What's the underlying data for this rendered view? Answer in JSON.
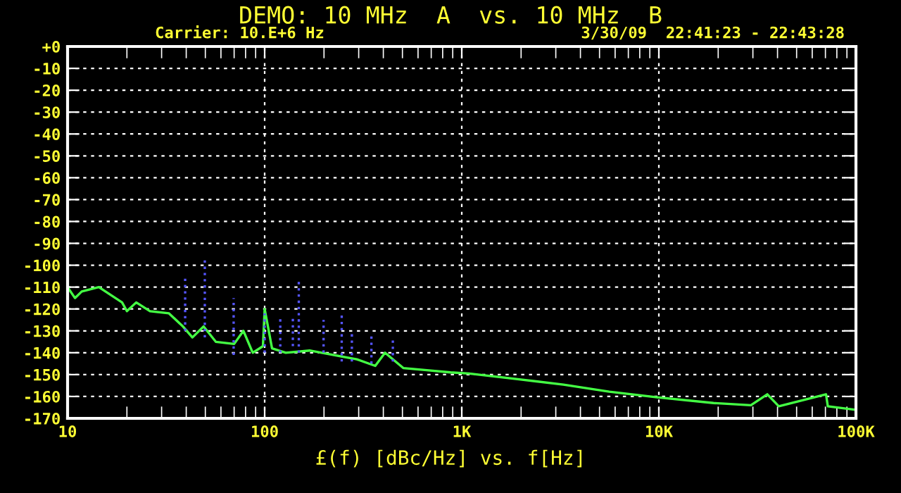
{
  "chart_data": {
    "type": "line",
    "title": "DEMO: 10 MHz  A  vs. 10 MHz  B",
    "subtitle": "Carrier: 10.E+6 Hz",
    "annotations": [
      "3/30/09  22:41:23 - 22:43:28"
    ],
    "xlabel": "£(f) [dBc/Hz] vs. f[Hz]",
    "log": "x",
    "grid": true,
    "xlim": [
      10,
      100000
    ],
    "ylim": [
      -170,
      0
    ],
    "xticks": [
      {
        "value": 10,
        "label": "10"
      },
      {
        "value": 20,
        "label": null
      },
      {
        "value": 30,
        "label": null
      },
      {
        "value": 40,
        "label": null
      },
      {
        "value": 50,
        "label": null
      },
      {
        "value": 60,
        "label": null
      },
      {
        "value": 70,
        "label": null
      },
      {
        "value": 80,
        "label": null
      },
      {
        "value": 90,
        "label": null
      },
      {
        "value": 100,
        "label": "100"
      },
      {
        "value": 200,
        "label": null
      },
      {
        "value": 300,
        "label": null
      },
      {
        "value": 400,
        "label": null
      },
      {
        "value": 500,
        "label": null
      },
      {
        "value": 600,
        "label": null
      },
      {
        "value": 700,
        "label": null
      },
      {
        "value": 800,
        "label": null
      },
      {
        "value": 900,
        "label": null
      },
      {
        "value": 1000,
        "label": "1K"
      },
      {
        "value": 2000,
        "label": null
      },
      {
        "value": 3000,
        "label": null
      },
      {
        "value": 4000,
        "label": null
      },
      {
        "value": 5000,
        "label": null
      },
      {
        "value": 6000,
        "label": null
      },
      {
        "value": 7000,
        "label": null
      },
      {
        "value": 8000,
        "label": null
      },
      {
        "value": 9000,
        "label": null
      },
      {
        "value": 10000,
        "label": "10K"
      },
      {
        "value": 20000,
        "label": null
      },
      {
        "value": 30000,
        "label": null
      },
      {
        "value": 40000,
        "label": null
      },
      {
        "value": 50000,
        "label": null
      },
      {
        "value": 60000,
        "label": null
      },
      {
        "value": 70000,
        "label": null
      },
      {
        "value": 80000,
        "label": null
      },
      {
        "value": 90000,
        "label": null
      },
      {
        "value": 100000,
        "label": "100K"
      }
    ],
    "yticks": [
      {
        "value": 0,
        "label": "+0"
      },
      -10,
      -20,
      -30,
      -40,
      -50,
      -60,
      -70,
      -80,
      -90,
      -100,
      -110,
      -120,
      -130,
      -140,
      -150,
      -160,
      -170
    ],
    "series": [
      {
        "color": "#44ff44",
        "line_style": "solid",
        "x": [
          10,
          10.9,
          11.8,
          14.4,
          18.9,
          20,
          22.3,
          26.2,
          32.7,
          38.5,
          43,
          49,
          56.5,
          70,
          78,
          87,
          98,
          100,
          109,
          128,
          169,
          222,
          293,
          364,
          408,
          505,
          665,
          878,
          1090,
          1890,
          3280,
          5600,
          9800,
          18950,
          29300,
          35500,
          40600,
          70500,
          72000,
          98000,
          100000
        ],
        "values": [
          -110,
          -115,
          -112,
          -110,
          -117,
          -121,
          -117,
          -121,
          -122,
          -128,
          -133,
          -128,
          -135,
          -136,
          -130,
          -140,
          -137,
          -120,
          -138,
          -140,
          -139,
          -141,
          -143,
          -146,
          -140,
          -147,
          -148,
          -149,
          -149.5,
          -152,
          -154.6,
          -157.8,
          -160.4,
          -163,
          -164,
          -159,
          -164.5,
          -159,
          -164.5,
          -166,
          -166
        ]
      },
      {
        "color": "#5555ff",
        "line_style": "dotted",
        "x": [
          39.5,
          39.5
        ],
        "values": [
          -130,
          -106
        ]
      },
      {
        "color": "#5555ff",
        "line_style": "dotted",
        "x": [
          49.7,
          49.7
        ],
        "values": [
          -133,
          -96.5
        ]
      },
      {
        "color": "#5555ff",
        "line_style": "dotted",
        "x": [
          69.6,
          69.6
        ],
        "values": [
          -141,
          -115
        ]
      },
      {
        "color": "#5555ff",
        "line_style": "dotted",
        "x": [
          100,
          100
        ],
        "values": [
          -140,
          -122
        ]
      },
      {
        "color": "#5555ff",
        "line_style": "dotted",
        "x": [
          120,
          120
        ],
        "values": [
          -140,
          -124
        ]
      },
      {
        "color": "#5555ff",
        "line_style": "dotted",
        "x": [
          139,
          139
        ],
        "values": [
          -137,
          -124
        ]
      },
      {
        "color": "#5555ff",
        "line_style": "dotted",
        "x": [
          149,
          149
        ],
        "values": [
          -140,
          -107
        ]
      },
      {
        "color": "#5555ff",
        "line_style": "dotted",
        "x": [
          199,
          199
        ],
        "values": [
          -140,
          -125
        ]
      },
      {
        "color": "#5555ff",
        "line_style": "dotted",
        "x": [
          246,
          246
        ],
        "values": [
          -144,
          -122
        ]
      },
      {
        "color": "#5555ff",
        "line_style": "dotted",
        "x": [
          277,
          277
        ],
        "values": [
          -144,
          -131
        ]
      },
      {
        "color": "#5555ff",
        "line_style": "dotted",
        "x": [
          348,
          348
        ],
        "values": [
          -145,
          -131
        ]
      },
      {
        "color": "#5555ff",
        "line_style": "dotted",
        "x": [
          447,
          447
        ],
        "values": [
          -144,
          -134
        ]
      }
    ]
  }
}
